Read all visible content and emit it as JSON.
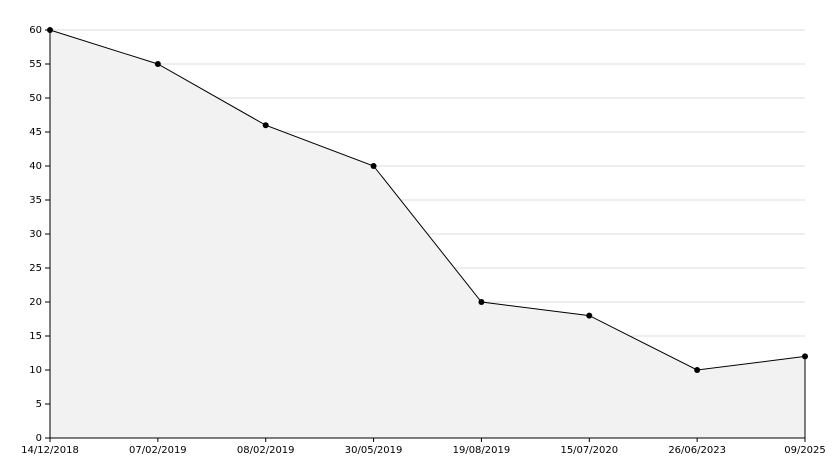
{
  "chart_data": {
    "type": "area",
    "categories": [
      "14/12/2018",
      "07/02/2019",
      "08/02/2019",
      "30/05/2019",
      "19/08/2019",
      "15/07/2020",
      "26/06/2023",
      "09/2025"
    ],
    "values": [
      60,
      55,
      46,
      40,
      20,
      18,
      10,
      12
    ],
    "color": "#000000",
    "fill": "#f2f2f2",
    "ylim": [
      0,
      60
    ],
    "yticks": [
      0,
      5,
      10,
      15,
      20,
      25,
      30,
      35,
      40,
      45,
      50,
      55,
      60
    ],
    "grid": true
  }
}
